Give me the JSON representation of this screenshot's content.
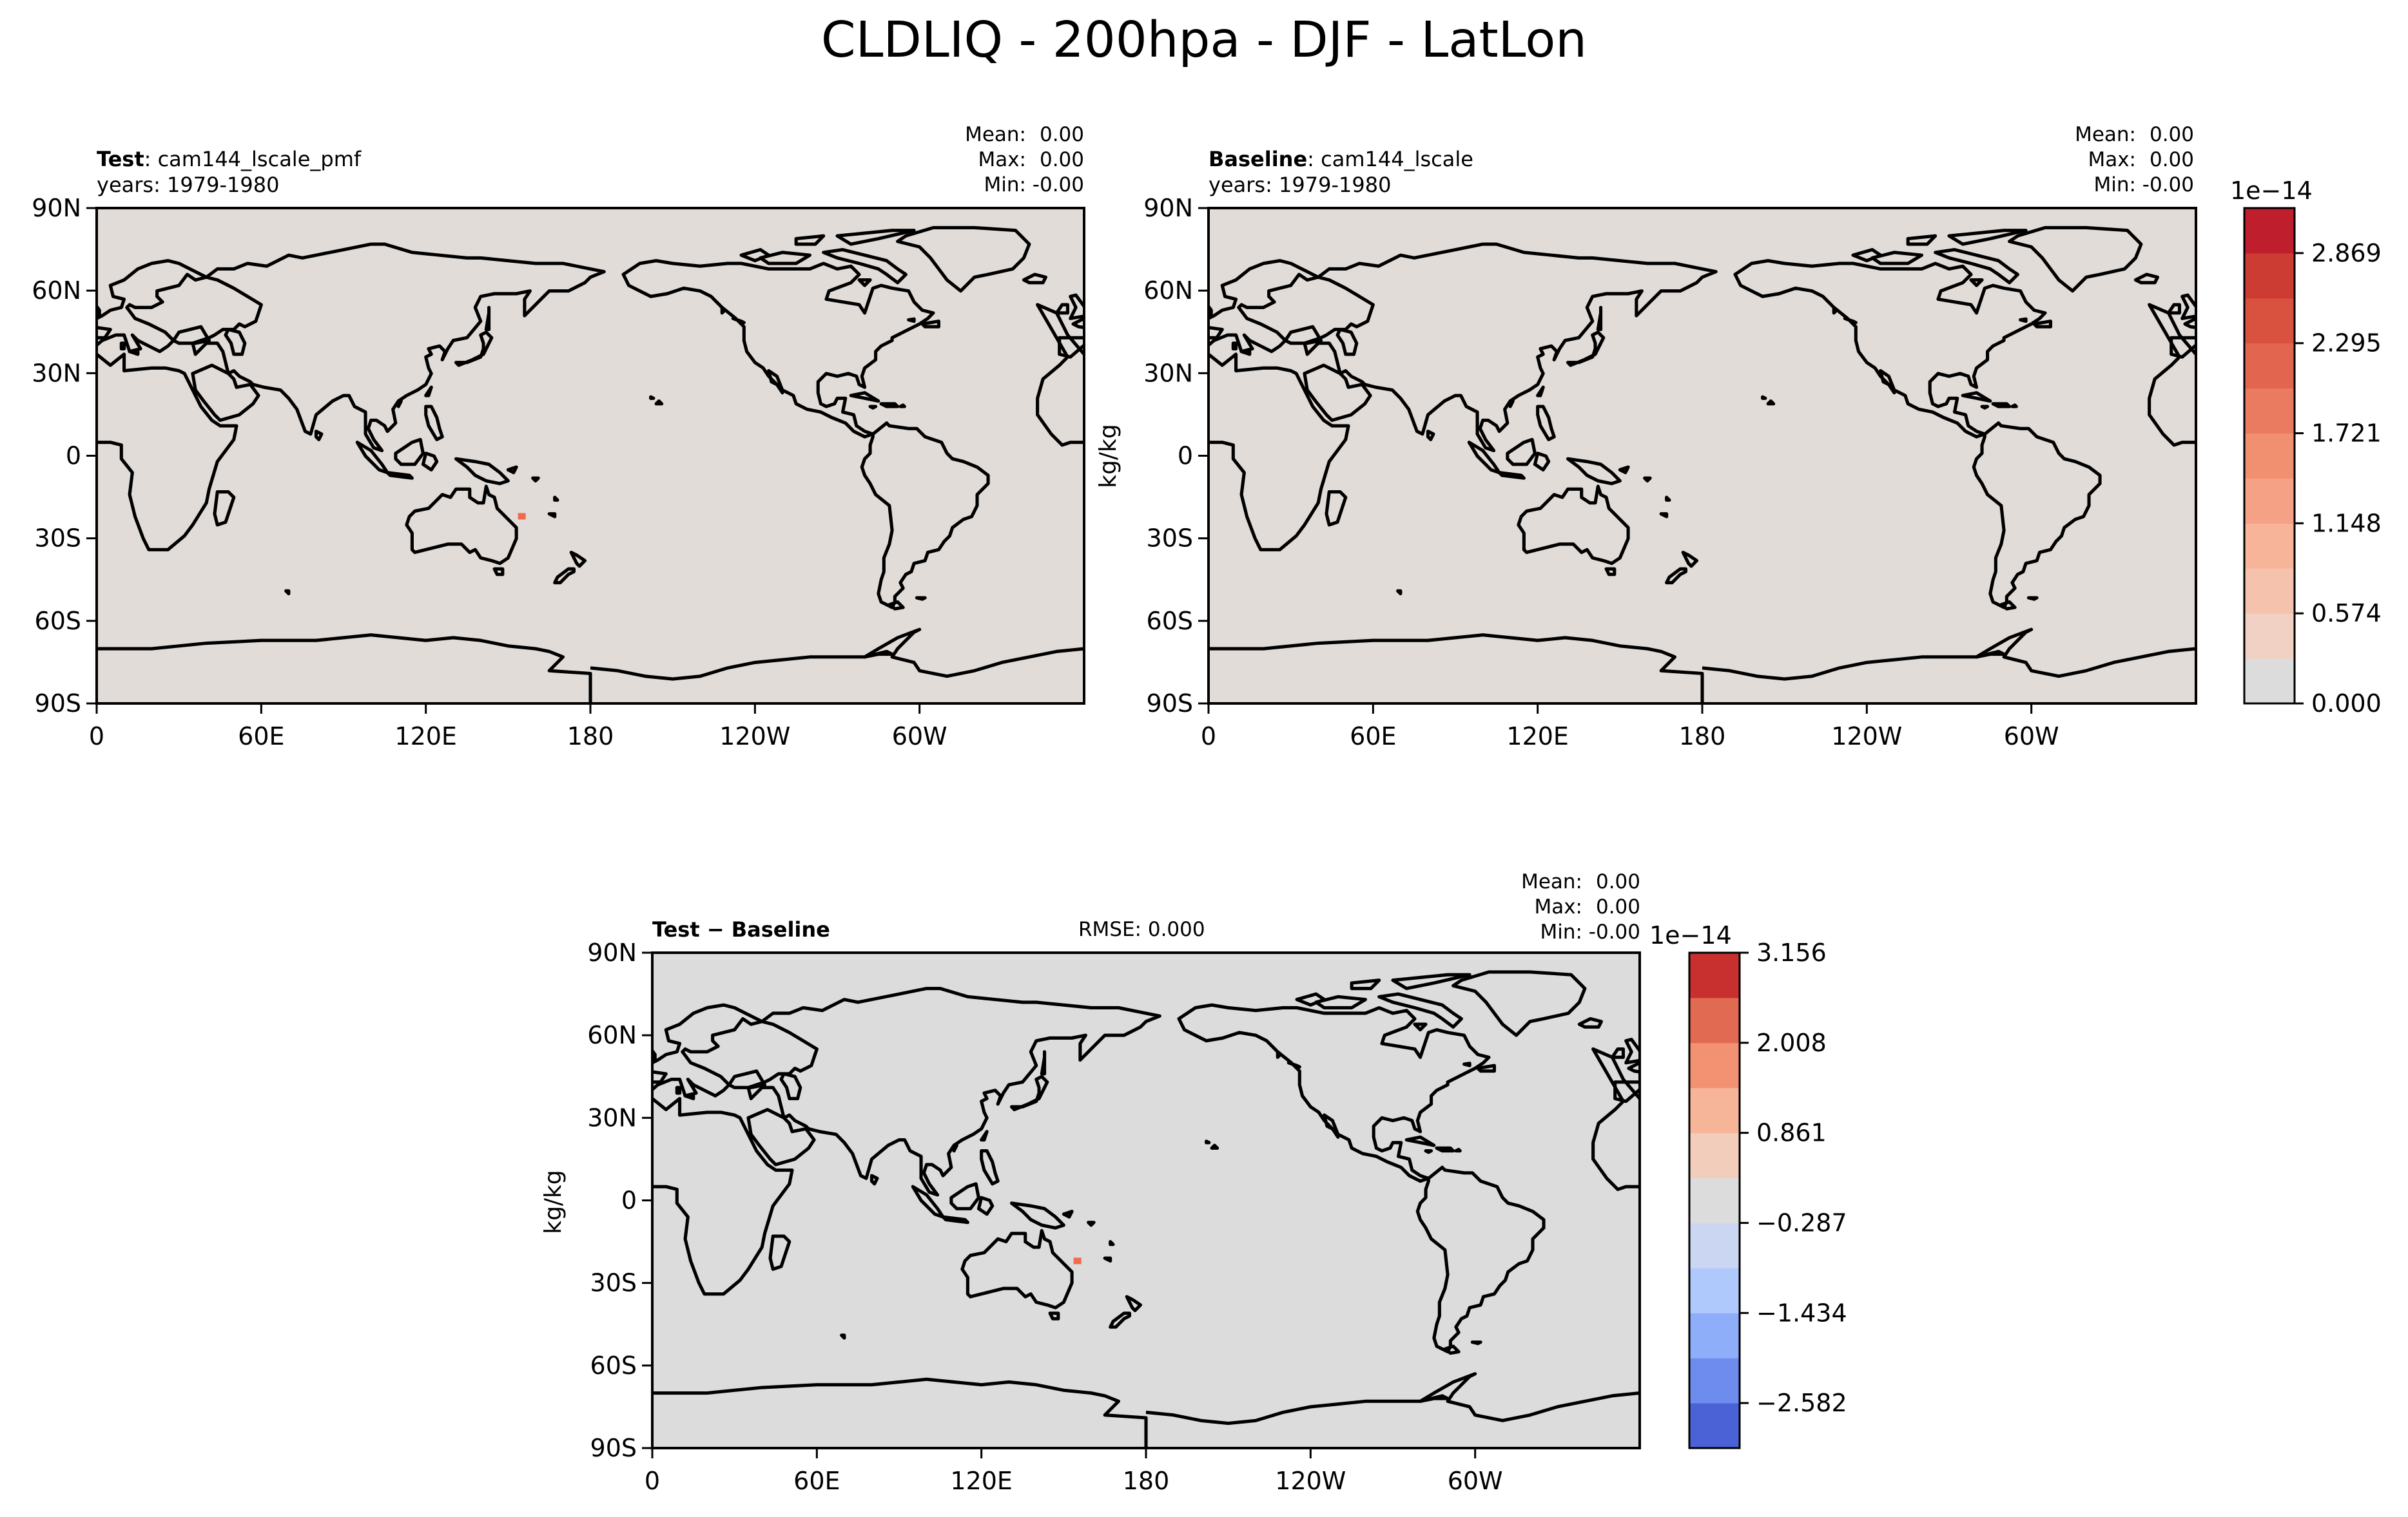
{
  "title": "CLDLIQ - 200hpa - DJF - LatLon",
  "chart_data": [
    {
      "type": "heatmap",
      "name": "test",
      "label_bold": "Test",
      "label_rest": ": cam144_lscale_pmf",
      "years": "years: 1979-1980",
      "stats": [
        [
          "Mean:",
          "0.00"
        ],
        [
          "Max:",
          "0.00"
        ],
        [
          "Min:",
          "-0.00"
        ]
      ],
      "x_ticks": [
        "0",
        "60E",
        "120E",
        "180",
        "120W",
        "60W"
      ],
      "y_ticks": [
        "90N",
        "60N",
        "30N",
        "0",
        "30S",
        "60S",
        "90S"
      ],
      "xlim": [
        0,
        360
      ],
      "ylim": [
        -90,
        90
      ],
      "field_color": "#e2dcd8",
      "highlights": [
        {
          "lon": 155,
          "lat": -22,
          "color": "#f06a4c"
        }
      ]
    },
    {
      "type": "heatmap",
      "name": "baseline",
      "label_bold": "Baseline",
      "label_rest": ": cam144_lscale",
      "years": "years: 1979-1980",
      "stats": [
        [
          "Mean:",
          "0.00"
        ],
        [
          "Max:",
          "0.00"
        ],
        [
          "Min:",
          "-0.00"
        ]
      ],
      "x_ticks": [
        "0",
        "60E",
        "120E",
        "180",
        "120W",
        "60W"
      ],
      "y_ticks": [
        "90N",
        "60N",
        "30N",
        "0",
        "30S",
        "60S",
        "90S"
      ],
      "xlim": [
        0,
        360
      ],
      "ylim": [
        -90,
        90
      ],
      "field_color": "#e2dcd8",
      "highlights": [],
      "colorbar": {
        "offset_label": "1e−14",
        "unit_label": "kg/kg",
        "tick_labels": [
          "0.000",
          "0.574",
          "1.148",
          "1.721",
          "2.295",
          "2.869"
        ],
        "colors": [
          "#dddcdc",
          "#f1d1c4",
          "#f5c2ad",
          "#f7b499",
          "#f5a185",
          "#f18f71",
          "#eb7b60",
          "#e2664f",
          "#d8523f",
          "#cc3c33",
          "#bf1e2d"
        ]
      }
    },
    {
      "type": "heatmap",
      "name": "difference",
      "label_bold": "Test − Baseline",
      "rmse": "RMSE: 0.000",
      "stats": [
        [
          "Mean:",
          "0.00"
        ],
        [
          "Max:",
          "0.00"
        ],
        [
          "Min:",
          "-0.00"
        ]
      ],
      "x_ticks": [
        "0",
        "60E",
        "120E",
        "180",
        "120W",
        "60W"
      ],
      "y_ticks": [
        "90N",
        "60N",
        "30N",
        "0",
        "30S",
        "60S",
        "90S"
      ],
      "xlim": [
        0,
        360
      ],
      "ylim": [
        -90,
        90
      ],
      "field_color": "#dcdcdc",
      "highlights": [
        {
          "lon": 155,
          "lat": -22,
          "color": "#f06a4c"
        }
      ],
      "colorbar": {
        "offset_label": "1e−14",
        "unit_label": "kg/kg",
        "tick_labels": [
          "3.156",
          "2.008",
          "0.861",
          "−0.287",
          "−1.434",
          "−2.582"
        ],
        "colors": [
          "#4a62d6",
          "#6d8ced",
          "#8eaefa",
          "#b0c9fc",
          "#cbd6f2",
          "#dddcdc",
          "#f2cdbc",
          "#f6b498",
          "#f39273",
          "#e16a53",
          "#c7302f"
        ]
      }
    }
  ]
}
